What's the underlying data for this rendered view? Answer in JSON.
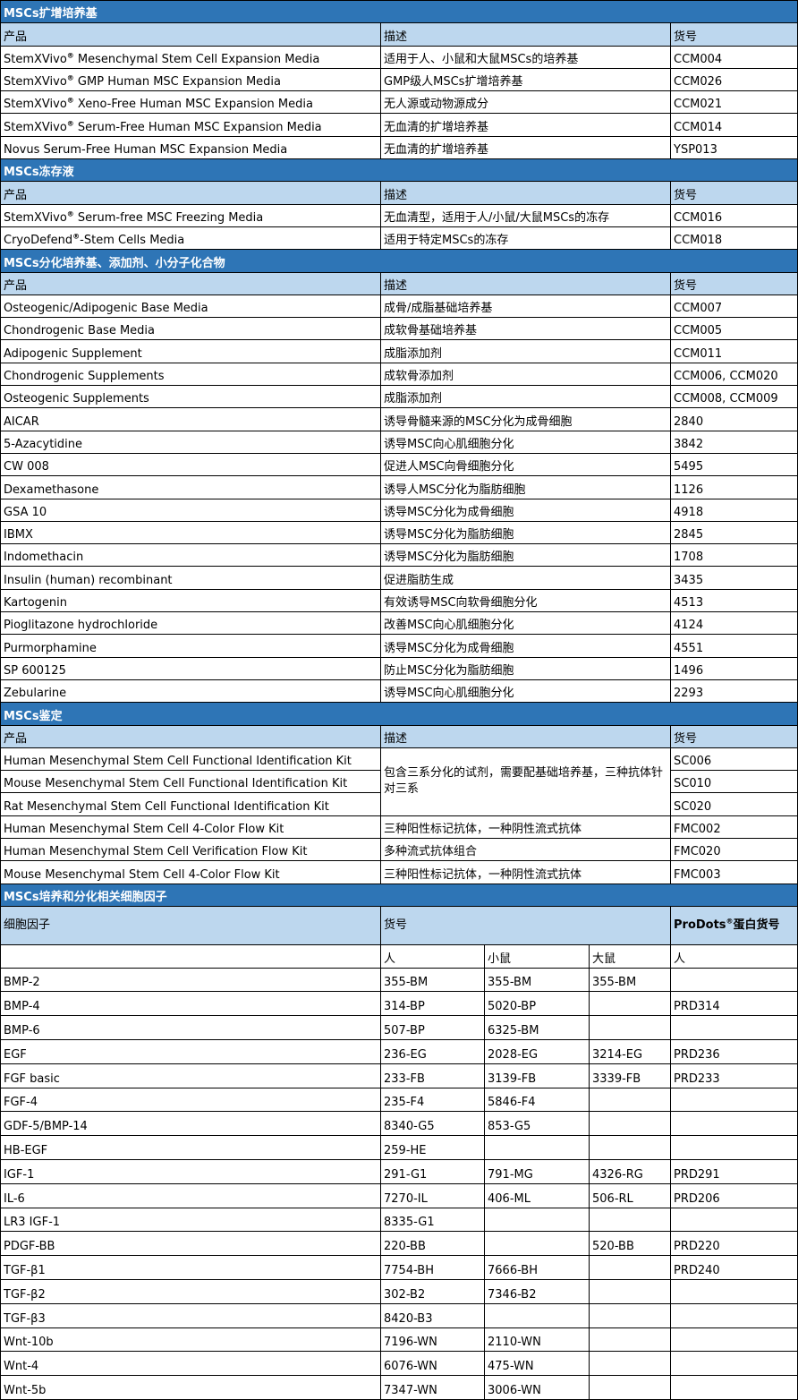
{
  "sections": [
    {
      "title": "MSCs扩增培养基",
      "headers": [
        "产品",
        "描述",
        "货号"
      ],
      "rows": [
        [
          "StemXVivo® Mesenchymal Stem Cell Expansion Media",
          "适用于人、小鼠和大鼠MSCs的培养基",
          "CCM004"
        ],
        [
          "StemXVivo® GMP Human MSC Expansion Media",
          "GMP级人MSCs扩增培养基",
          "CCM026"
        ],
        [
          "StemXVivo® Xeno-Free Human MSC Expansion Media",
          "无人源或动物源成分",
          "CCM021"
        ],
        [
          "StemXVivo® Serum-Free Human MSC Expansion Media",
          "无血清的扩增培养基",
          "CCM014"
        ],
        [
          "Novus Serum-Free Human MSC Expansion Media",
          "无血清的扩增培养基",
          "YSP013"
        ]
      ]
    },
    {
      "title": "MSCs冻存液",
      "headers": [
        "产品",
        "描述",
        "货号"
      ],
      "rows": [
        [
          "StemXVivo® Serum-free MSC Freezing Media",
          "无血清型，适用于人/小鼠/大鼠MSCs的冻存",
          "CCM016"
        ],
        [
          "CryoDefend®-Stem Cells Media",
          "适用于特定MSCs的冻存",
          "CCM018"
        ]
      ]
    },
    {
      "title": "MSCs分化培养基、添加剂、小分子化合物",
      "headers": [
        "产品",
        "描述",
        "货号"
      ],
      "rows": [
        [
          "Osteogenic/Adipogenic Base Media",
          "成骨/成脂基础培养基",
          "CCM007"
        ],
        [
          "Chondrogenic Base Media",
          "成软骨基础培养基",
          "CCM005"
        ],
        [
          "Adipogenic Supplement",
          "成脂添加剂",
          "CCM011"
        ],
        [
          "Chondrogenic Supplements",
          "成软骨添加剂",
          "CCM006, CCM020"
        ],
        [
          "Osteogenic Supplements",
          "成脂添加剂",
          "CCM008, CCM009"
        ],
        [
          "AICAR",
          "诱导骨髓来源的MSC分化为成骨细胞",
          "2840"
        ],
        [
          "5-Azacytidine",
          "诱导MSC向心肌细胞分化",
          "3842"
        ],
        [
          "CW 008",
          "促进人MSC向骨细胞分化",
          "5495"
        ],
        [
          "Dexamethasone",
          "诱导人MSC分化为脂肪细胞",
          "1126"
        ],
        [
          "GSA 10",
          "诱导MSC分化为成骨细胞",
          "4918"
        ],
        [
          "IBMX",
          "诱导MSC分化为脂肪细胞",
          "2845"
        ],
        [
          "Indomethacin",
          "诱导MSC分化为脂肪细胞",
          "1708"
        ],
        [
          "Insulin (human) recombinant",
          "促进脂肪生成",
          "3435"
        ],
        [
          "Kartogenin",
          "有效诱导MSC向软骨细胞分化",
          "4513"
        ],
        [
          "Pioglitazone hydrochloride",
          "改善MSC向心肌细胞分化",
          "4124"
        ],
        [
          "Purmorphamine",
          "诱导MSC分化为成骨细胞",
          "4551"
        ],
        [
          "SP 600125",
          "防止MSC分化为脂肪细胞",
          "1496"
        ],
        [
          "Zebularine",
          "诱导MSC向心肌细胞分化",
          "2293"
        ]
      ]
    },
    {
      "title": "MSCs鉴定",
      "headers": [
        "产品",
        "描述",
        "货号"
      ],
      "merged_description": "包含三系分化的试剂，需要配基础培养基，三种抗体针对三系",
      "rows": [
        [
          "Human Mesenchymal Stem Cell Functional Identification Kit",
          "",
          "SC006"
        ],
        [
          "Mouse Mesenchymal Stem Cell Functional Identification Kit",
          "",
          "SC010"
        ],
        [
          "Rat Mesenchymal Stem Cell Functional Identification Kit",
          "",
          "SC020"
        ],
        [
          "Human Mesenchymal Stem Cell 4-Color Flow Kit",
          "三种阳性标记抗体，一种阴性流式抗体",
          "FMC002"
        ],
        [
          "Human Mesenchymal Stem Cell Verification Flow Kit",
          "多种流式抗体组合",
          "FMC020"
        ],
        [
          "Mouse Mesenchymal Stem Cell 4-Color Flow Kit",
          "三种阳性标记抗体，一种阴性流式抗体",
          "FMC003"
        ]
      ]
    }
  ],
  "cytokines": {
    "title": "MSCs培养和分化相关细胞因子",
    "headers": [
      "细胞因子",
      "货号",
      "ProDots®蛋白货号"
    ],
    "subheaders": [
      "",
      "人",
      "小鼠",
      "大鼠",
      "人"
    ],
    "rows": [
      [
        "BMP-2",
        "355-BM",
        "355-BM",
        "355-BM",
        ""
      ],
      [
        "BMP-4",
        "314-BP",
        "5020-BP",
        "",
        "PRD314"
      ],
      [
        "BMP-6",
        "507-BP",
        "6325-BM",
        "",
        ""
      ],
      [
        "EGF",
        "236-EG",
        "2028-EG",
        "3214-EG",
        "PRD236"
      ],
      [
        "FGF basic",
        "233-FB",
        "3139-FB",
        "3339-FB",
        "PRD233"
      ],
      [
        "FGF-4",
        "235-F4",
        "5846-F4",
        "",
        ""
      ],
      [
        "GDF-5/BMP-14",
        "8340-G5",
        "853-G5",
        "",
        ""
      ],
      [
        "HB-EGF",
        "259-HE",
        "",
        "",
        ""
      ],
      [
        "IGF-1",
        "291-G1",
        "791-MG",
        "4326-RG",
        "PRD291"
      ],
      [
        "IL-6",
        "7270-IL",
        "406-ML",
        "506-RL",
        "PRD206"
      ],
      [
        "LR3 IGF-1",
        "8335-G1",
        "",
        "",
        ""
      ],
      [
        "PDGF-BB",
        "220-BB",
        "",
        "520-BB",
        "PRD220"
      ],
      [
        "TGF-β1",
        "7754-BH",
        "7666-BH",
        "",
        "PRD240"
      ],
      [
        "TGF-β2",
        "302-B2",
        "7346-B2",
        "",
        ""
      ],
      [
        "TGF-β3",
        "8420-B3",
        "",
        "",
        ""
      ],
      [
        "Wnt-10b",
        "7196-WN",
        "2110-WN",
        "",
        ""
      ],
      [
        "Wnt-4",
        "6076-WN",
        "475-WN",
        "",
        ""
      ],
      [
        "Wnt-5b",
        "7347-WN",
        "3006-WN",
        "",
        ""
      ]
    ]
  },
  "colors": {
    "section_header": "#2e75b6",
    "column_header": "#bdd7ee"
  }
}
